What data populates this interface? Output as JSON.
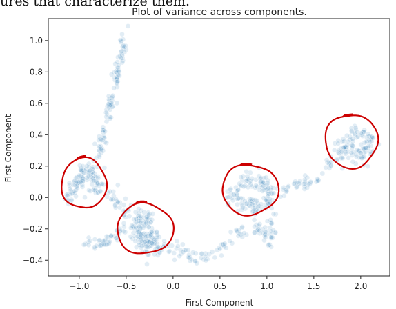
{
  "page": {
    "caption": "ures that characterize them."
  },
  "chart_data": {
    "type": "scatter",
    "title": "Plot of variance across components.",
    "xlabel": "First Component",
    "ylabel": "First Component",
    "xlim": [
      -1.33,
      2.31
    ],
    "ylim": [
      -0.5,
      1.14
    ],
    "xticks": [
      -1.0,
      -0.5,
      0.0,
      0.5,
      1.0,
      1.5,
      2.0
    ],
    "xtick_labels": [
      "−1.0",
      "−0.5",
      "0.0",
      "0.5",
      "1.0",
      "1.5",
      "2.0"
    ],
    "yticks": [
      -0.4,
      -0.2,
      0.0,
      0.2,
      0.4,
      0.6,
      0.8,
      1.0
    ],
    "ytick_labels": [
      "−0.4",
      "−0.2",
      "0.0",
      "0.2",
      "0.4",
      "0.6",
      "0.8",
      "1.0"
    ],
    "grid": false,
    "point_color": "#1f77b4",
    "annotation_color": "#cc0000",
    "series": [
      {
        "clusters": [
          {
            "path": [
              [
                -0.51,
                1.03
              ],
              [
                -0.55,
                0.92
              ],
              [
                -0.58,
                0.85
              ],
              [
                -0.62,
                0.72
              ],
              [
                -0.66,
                0.6
              ],
              [
                -0.7,
                0.5
              ],
              [
                -0.74,
                0.4
              ],
              [
                -0.78,
                0.32
              ],
              [
                -0.82,
                0.26
              ]
            ],
            "n": 110,
            "spread": [
              0.022,
              0.025
            ]
          },
          {
            "path": [
              [
                -1.12,
                0.0
              ],
              [
                -1.05,
                0.08
              ],
              [
                -0.97,
                0.14
              ],
              [
                -0.9,
                0.19
              ],
              [
                -0.85,
                0.15
              ],
              [
                -0.8,
                0.08
              ],
              [
                -0.88,
                0.05
              ]
            ],
            "n": 110,
            "spread": [
              0.035,
              0.035
            ]
          },
          {
            "path": [
              [
                -0.72,
                0.06
              ],
              [
                -0.65,
                0.02
              ],
              [
                -0.6,
                -0.04
              ],
              [
                -0.52,
                -0.08
              ],
              [
                -0.45,
                -0.1
              ]
            ],
            "n": 30,
            "spread": [
              0.03,
              0.025
            ]
          },
          {
            "path": [
              [
                -0.42,
                -0.12
              ],
              [
                -0.35,
                -0.16
              ],
              [
                -0.28,
                -0.2
              ],
              [
                -0.22,
                -0.25
              ],
              [
                -0.18,
                -0.3
              ],
              [
                -0.3,
                -0.26
              ],
              [
                -0.4,
                -0.18
              ]
            ],
            "n": 150,
            "spread": [
              0.055,
              0.05
            ]
          },
          {
            "path": [
              [
                -0.95,
                -0.28
              ],
              [
                -0.85,
                -0.3
              ],
              [
                -0.75,
                -0.3
              ],
              [
                -0.65,
                -0.27
              ],
              [
                -0.58,
                -0.22
              ],
              [
                -0.5,
                -0.2
              ]
            ],
            "n": 45,
            "spread": [
              0.035,
              0.02
            ]
          },
          {
            "path": [
              [
                -0.12,
                -0.3
              ],
              [
                -0.05,
                -0.33
              ],
              [
                0.05,
                -0.34
              ],
              [
                0.15,
                -0.35
              ],
              [
                0.25,
                -0.38
              ],
              [
                0.35,
                -0.37
              ],
              [
                0.45,
                -0.33
              ],
              [
                0.55,
                -0.3
              ],
              [
                0.62,
                -0.25
              ],
              [
                0.72,
                -0.23
              ],
              [
                0.82,
                -0.22
              ],
              [
                0.92,
                -0.2
              ],
              [
                1.0,
                -0.24
              ],
              [
                1.05,
                -0.3
              ],
              [
                1.05,
                -0.13
              ],
              [
                1.0,
                -0.1
              ]
            ],
            "n": 110,
            "spread": [
              0.025,
              0.025
            ]
          },
          {
            "path": [
              [
                0.58,
                -0.02
              ],
              [
                0.65,
                0.03
              ],
              [
                0.72,
                0.07
              ],
              [
                0.8,
                0.1
              ],
              [
                0.88,
                0.12
              ],
              [
                0.95,
                0.09
              ],
              [
                1.02,
                0.05
              ],
              [
                1.05,
                0.0
              ],
              [
                0.98,
                -0.04
              ],
              [
                0.88,
                -0.06
              ],
              [
                0.78,
                -0.05
              ],
              [
                0.68,
                -0.01
              ]
            ],
            "n": 140,
            "spread": [
              0.035,
              0.03
            ]
          },
          {
            "path": [
              [
                1.12,
                0.02
              ],
              [
                1.22,
                0.05
              ],
              [
                1.32,
                0.07
              ],
              [
                1.42,
                0.09
              ],
              [
                1.5,
                0.1
              ],
              [
                1.56,
                0.12
              ],
              [
                1.62,
                0.15
              ],
              [
                1.67,
                0.22
              ],
              [
                1.72,
                0.28
              ]
            ],
            "n": 50,
            "spread": [
              0.022,
              0.02
            ]
          },
          {
            "path": [
              [
                1.75,
                0.32
              ],
              [
                1.82,
                0.35
              ],
              [
                1.88,
                0.38
              ],
              [
                1.94,
                0.4
              ],
              [
                2.02,
                0.42
              ],
              [
                2.08,
                0.38
              ],
              [
                2.12,
                0.34
              ],
              [
                2.0,
                0.3
              ],
              [
                1.9,
                0.3
              ],
              [
                1.8,
                0.28
              ],
              [
                1.85,
                0.24
              ],
              [
                2.05,
                0.24
              ]
            ],
            "n": 110,
            "spread": [
              0.035,
              0.025
            ]
          }
        ]
      }
    ],
    "annotations": [
      {
        "type": "hand-drawn-circle",
        "cx": -0.95,
        "cy": 0.09,
        "rx": 0.24,
        "ry": 0.16
      },
      {
        "type": "hand-drawn-circle",
        "cx": -0.3,
        "cy": -0.2,
        "rx": 0.3,
        "ry": 0.16
      },
      {
        "type": "hand-drawn-circle",
        "cx": 0.82,
        "cy": 0.05,
        "rx": 0.3,
        "ry": 0.16
      },
      {
        "type": "hand-drawn-circle",
        "cx": 1.9,
        "cy": 0.36,
        "rx": 0.28,
        "ry": 0.17
      }
    ]
  }
}
